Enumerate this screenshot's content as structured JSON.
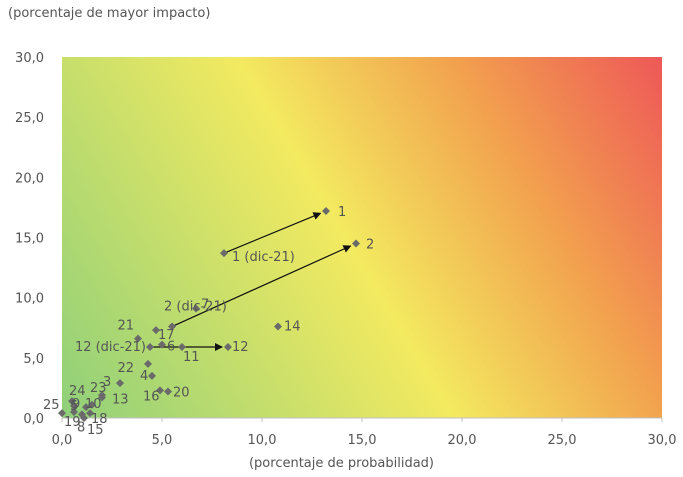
{
  "chart_data": {
    "type": "scatter",
    "title": "",
    "ylabel": "(porcentaje de mayor impacto)",
    "xlabel": "(porcentaje de probabilidad)",
    "xlim": [
      0,
      30
    ],
    "ylim": [
      0,
      30
    ],
    "xticks": [
      "0,0",
      "5,0",
      "10,0",
      "15,0",
      "20,0",
      "25,0",
      "30,0"
    ],
    "yticks": [
      "0,0",
      "5,0",
      "10,0",
      "15,0",
      "20,0",
      "25,0",
      "30,0"
    ],
    "tick_values": [
      0,
      5,
      10,
      15,
      20,
      25,
      30
    ],
    "background_gradient": [
      "#8fd07a",
      "#f3ea60",
      "#f2a24e",
      "#ee5858"
    ],
    "marker_color": "#6a6a6a",
    "points": [
      {
        "label": "1",
        "x": 13.2,
        "y": 17.2
      },
      {
        "label": "1 (dic-21)",
        "x": 8.1,
        "y": 13.7
      },
      {
        "label": "2",
        "x": 14.7,
        "y": 14.5
      },
      {
        "label": "2 (dic-21)",
        "x": 5.5,
        "y": 7.6
      },
      {
        "label": "7",
        "x": 6.7,
        "y": 9.1
      },
      {
        "label": "14",
        "x": 10.8,
        "y": 7.6
      },
      {
        "label": "12",
        "x": 8.3,
        "y": 5.9
      },
      {
        "label": "12 (dic-21)",
        "x": 4.4,
        "y": 5.9
      },
      {
        "label": "6",
        "x": 5.0,
        "y": 6.1
      },
      {
        "label": "11",
        "x": 6.0,
        "y": 5.9
      },
      {
        "label": "21",
        "x": 3.8,
        "y": 6.6
      },
      {
        "label": "17",
        "x": 4.7,
        "y": 7.3
      },
      {
        "label": "22",
        "x": 4.3,
        "y": 4.5
      },
      {
        "label": "4",
        "x": 4.5,
        "y": 3.5
      },
      {
        "label": "16",
        "x": 4.9,
        "y": 2.3
      },
      {
        "label": "20",
        "x": 5.3,
        "y": 2.2
      },
      {
        "label": "3",
        "x": 2.9,
        "y": 2.9
      },
      {
        "label": "23",
        "x": 2.0,
        "y": 1.9
      },
      {
        "label": "13",
        "x": 2.0,
        "y": 1.7
      },
      {
        "label": "24",
        "x": 0.5,
        "y": 1.4
      },
      {
        "label": "25",
        "x": 0.0,
        "y": 0.4
      },
      {
        "label": "9",
        "x": 0.6,
        "y": 1.0
      },
      {
        "label": "5",
        "x": 1.2,
        "y": 0.9
      },
      {
        "label": "10",
        "x": 1.5,
        "y": 1.1
      },
      {
        "label": "18",
        "x": 1.4,
        "y": 0.4
      },
      {
        "label": "8",
        "x": 1.0,
        "y": 0.3
      },
      {
        "label": "19",
        "x": 0.6,
        "y": 0.5
      },
      {
        "label": "15",
        "x": 1.1,
        "y": 0.0
      }
    ],
    "arrows": [
      {
        "from": "1 (dic-21)",
        "to": "1"
      },
      {
        "from": "2 (dic-21)",
        "to": "2"
      },
      {
        "from": "12 (dic-21)",
        "to": "12"
      }
    ]
  }
}
